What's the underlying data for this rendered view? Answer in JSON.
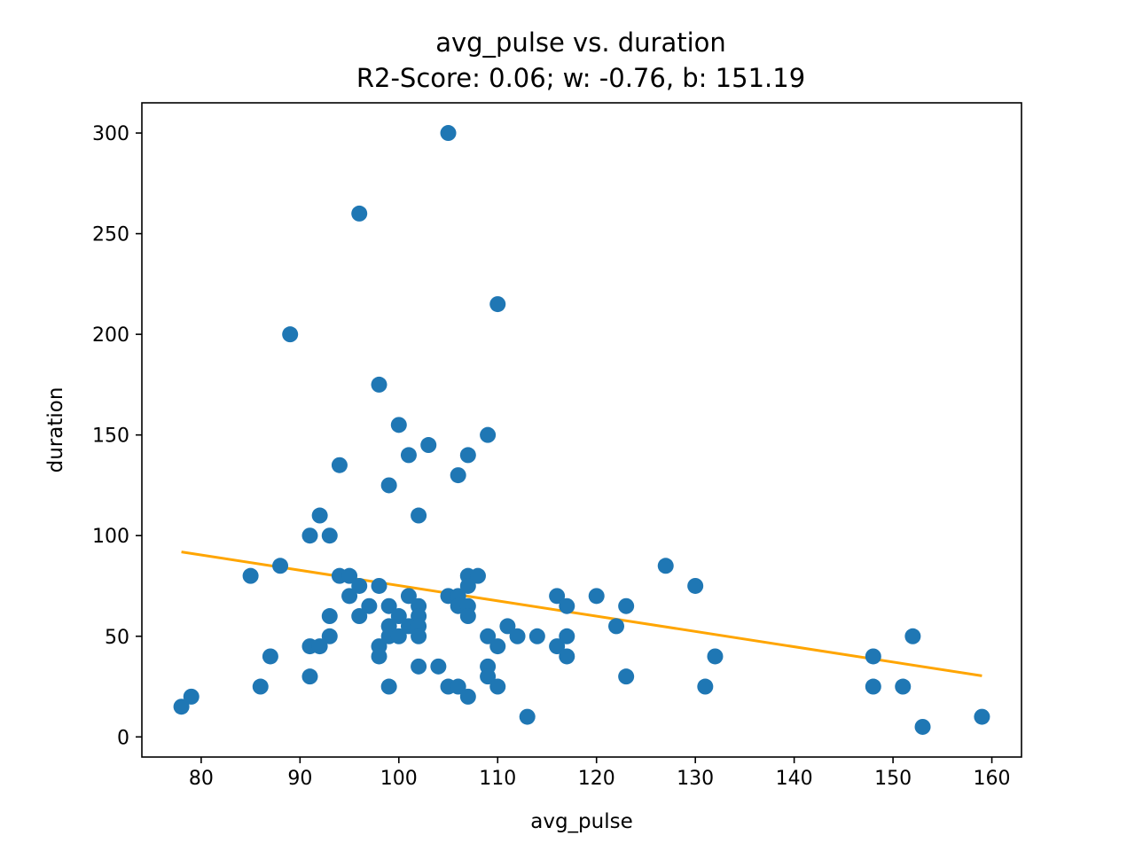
{
  "chart_data": {
    "type": "scatter",
    "title": "avg_pulse vs. duration",
    "subtitle": "R2-Score: 0.06; w: -0.76, b: 151.19",
    "xlabel": "avg_pulse",
    "ylabel": "duration",
    "xlim": [
      74.0,
      163.0
    ],
    "ylim": [
      -10,
      315
    ],
    "xticks": [
      80,
      90,
      100,
      110,
      120,
      130,
      140,
      150,
      160
    ],
    "yticks": [
      0,
      50,
      100,
      150,
      200,
      250,
      300
    ],
    "grid": false,
    "point_color": "#1f77b4",
    "line_color": "#ffa500",
    "fit_line": {
      "w": -0.76,
      "b": 151.19,
      "x_range": [
        78,
        159
      ]
    },
    "points": [
      [
        78,
        15
      ],
      [
        79,
        20
      ],
      [
        85,
        80
      ],
      [
        86,
        25
      ],
      [
        87,
        40
      ],
      [
        88,
        85
      ],
      [
        89,
        200
      ],
      [
        91,
        100
      ],
      [
        91,
        45
      ],
      [
        91,
        30
      ],
      [
        92,
        110
      ],
      [
        92,
        45
      ],
      [
        93,
        100
      ],
      [
        93,
        60
      ],
      [
        93,
        50
      ],
      [
        94,
        135
      ],
      [
        94,
        80
      ],
      [
        95,
        80
      ],
      [
        95,
        70
      ],
      [
        96,
        260
      ],
      [
        96,
        75
      ],
      [
        96,
        60
      ],
      [
        97,
        65
      ],
      [
        98,
        175
      ],
      [
        98,
        75
      ],
      [
        98,
        45
      ],
      [
        98,
        40
      ],
      [
        99,
        125
      ],
      [
        99,
        65
      ],
      [
        99,
        55
      ],
      [
        99,
        50
      ],
      [
        99,
        25
      ],
      [
        100,
        155
      ],
      [
        100,
        60
      ],
      [
        100,
        50
      ],
      [
        101,
        140
      ],
      [
        101,
        70
      ],
      [
        101,
        55
      ],
      [
        102,
        110
      ],
      [
        102,
        65
      ],
      [
        102,
        60
      ],
      [
        102,
        55
      ],
      [
        102,
        50
      ],
      [
        102,
        35
      ],
      [
        103,
        145
      ],
      [
        104,
        35
      ],
      [
        105,
        300
      ],
      [
        105,
        70
      ],
      [
        105,
        25
      ],
      [
        106,
        130
      ],
      [
        106,
        70
      ],
      [
        106,
        65
      ],
      [
        106,
        25
      ],
      [
        107,
        140
      ],
      [
        107,
        80
      ],
      [
        107,
        75
      ],
      [
        107,
        65
      ],
      [
        107,
        60
      ],
      [
        107,
        20
      ],
      [
        108,
        80
      ],
      [
        109,
        150
      ],
      [
        109,
        50
      ],
      [
        109,
        35
      ],
      [
        109,
        30
      ],
      [
        110,
        215
      ],
      [
        110,
        45
      ],
      [
        110,
        25
      ],
      [
        111,
        55
      ],
      [
        112,
        50
      ],
      [
        113,
        10
      ],
      [
        114,
        50
      ],
      [
        116,
        70
      ],
      [
        116,
        45
      ],
      [
        117,
        65
      ],
      [
        117,
        50
      ],
      [
        117,
        40
      ],
      [
        120,
        70
      ],
      [
        122,
        55
      ],
      [
        123,
        65
      ],
      [
        123,
        30
      ],
      [
        127,
        85
      ],
      [
        130,
        75
      ],
      [
        131,
        25
      ],
      [
        132,
        40
      ],
      [
        148,
        40
      ],
      [
        148,
        25
      ],
      [
        151,
        25
      ],
      [
        152,
        50
      ],
      [
        153,
        5
      ],
      [
        159,
        10
      ]
    ]
  }
}
